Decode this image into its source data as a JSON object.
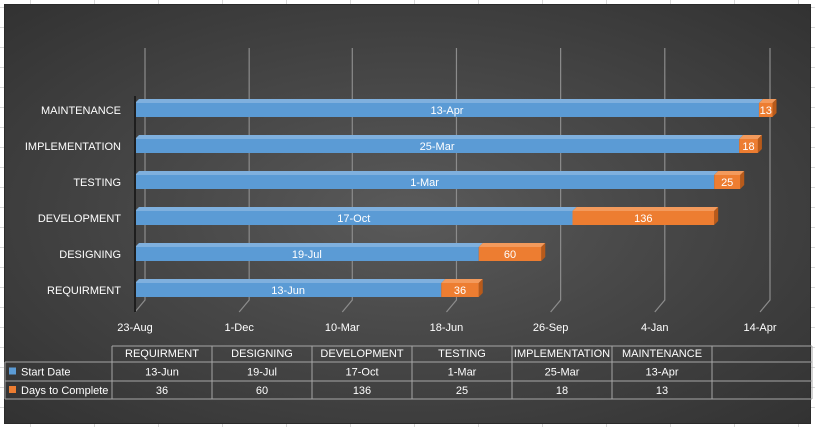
{
  "chart_data": {
    "type": "bar",
    "subtype": "stacked-horizontal-3d",
    "categories": [
      "REQUIRMENT",
      "DESIGNING",
      "DEVELOPMENT",
      "TESTING",
      "IMPLEMENTATION",
      "MAINTENANCE"
    ],
    "series": [
      {
        "name": "Start Date",
        "color": "#5b9bd5",
        "values": [
          "2015-06-13",
          "2015-07-19",
          "2015-10-17",
          "2016-03-01",
          "2016-03-25",
          "2016-04-13"
        ],
        "labels": [
          "13-Jun",
          "19-Jul",
          "17-Oct",
          "1-Mar",
          "25-Mar",
          "13-Apr"
        ]
      },
      {
        "name": "Days to Complete",
        "color": "#ed7d31",
        "values": [
          36,
          60,
          136,
          25,
          18,
          13
        ],
        "labels": [
          "36",
          "60",
          "136",
          "25",
          "18",
          "13"
        ]
      }
    ],
    "x_axis": {
      "type": "date",
      "ticks": [
        "2014-08-23",
        "2014-12-01",
        "2015-03-10",
        "2015-06-18",
        "2015-09-26",
        "2016-01-04",
        "2016-04-14"
      ],
      "tick_labels": [
        "23-Aug",
        "1-Dec",
        "10-Mar",
        "18-Jun",
        "26-Sep",
        "4-Jan",
        "14-Apr"
      ],
      "min": "2014-08-23",
      "max": "2016-04-14",
      "grid": true
    },
    "legend": "data-table",
    "data_table": {
      "headers": [
        "REQUIRMENT",
        "DESIGNING",
        "DEVELOPMENT",
        "TESTING",
        "IMPLEMENTATION",
        "MAINTENANCE"
      ],
      "rows": [
        {
          "label": "Start Date",
          "color": "#5b9bd5",
          "cells": [
            "13-Jun",
            "19-Jul",
            "17-Oct",
            "1-Mar",
            "25-Mar",
            "13-Apr"
          ]
        },
        {
          "label": "Days to Complete",
          "color": "#ed7d31",
          "cells": [
            "36",
            "60",
            "136",
            "25",
            "18",
            "13"
          ]
        }
      ]
    }
  }
}
